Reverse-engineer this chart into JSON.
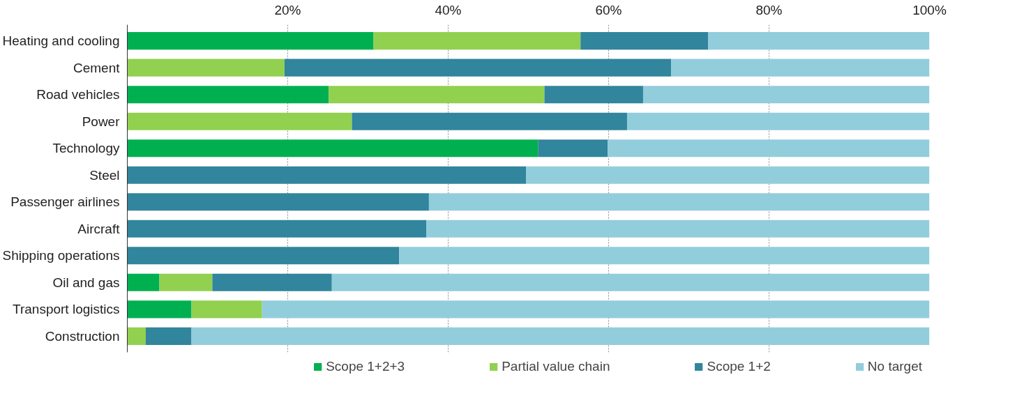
{
  "chart_data": {
    "type": "bar",
    "orientation": "horizontal",
    "stacked": true,
    "categories": [
      "Heating and cooling",
      "Cement",
      "Road vehicles",
      "Power",
      "Technology",
      "Steel",
      "Passenger airlines",
      "Aircraft",
      "Shipping operations",
      "Oil and gas",
      "Transport logistics",
      "Construction"
    ],
    "series": [
      {
        "name": "Scope 1+2+3",
        "color": "#00b050",
        "values": [
          30.7,
          0,
          25.1,
          0,
          51.2,
          0,
          0,
          0,
          0,
          4.0,
          8.0,
          0
        ]
      },
      {
        "name": "Partial value chain",
        "color": "#92d050",
        "values": [
          25.8,
          19.6,
          26.9,
          28.0,
          0,
          0,
          0,
          0,
          0,
          6.6,
          8.8,
          2.3
        ]
      },
      {
        "name": "Scope 1+2",
        "color": "#31859c",
        "values": [
          15.9,
          48.2,
          12.3,
          34.3,
          8.7,
          49.7,
          37.6,
          37.3,
          33.9,
          14.9,
          0,
          5.7
        ]
      },
      {
        "name": "No target",
        "color": "#92cddc",
        "values": [
          27.6,
          32.2,
          35.7,
          37.7,
          40.1,
          50.3,
          62.4,
          62.7,
          66.1,
          74.5,
          83.2,
          92.0
        ]
      }
    ],
    "xlim": [
      0,
      100
    ],
    "xticks": [
      {
        "value": 20,
        "label": "20%"
      },
      {
        "value": 40,
        "label": "40%"
      },
      {
        "value": 60,
        "label": "60%"
      },
      {
        "value": 80,
        "label": "80%"
      },
      {
        "value": 100,
        "label": "100%"
      }
    ],
    "grid": "x",
    "legend": "bottom"
  }
}
